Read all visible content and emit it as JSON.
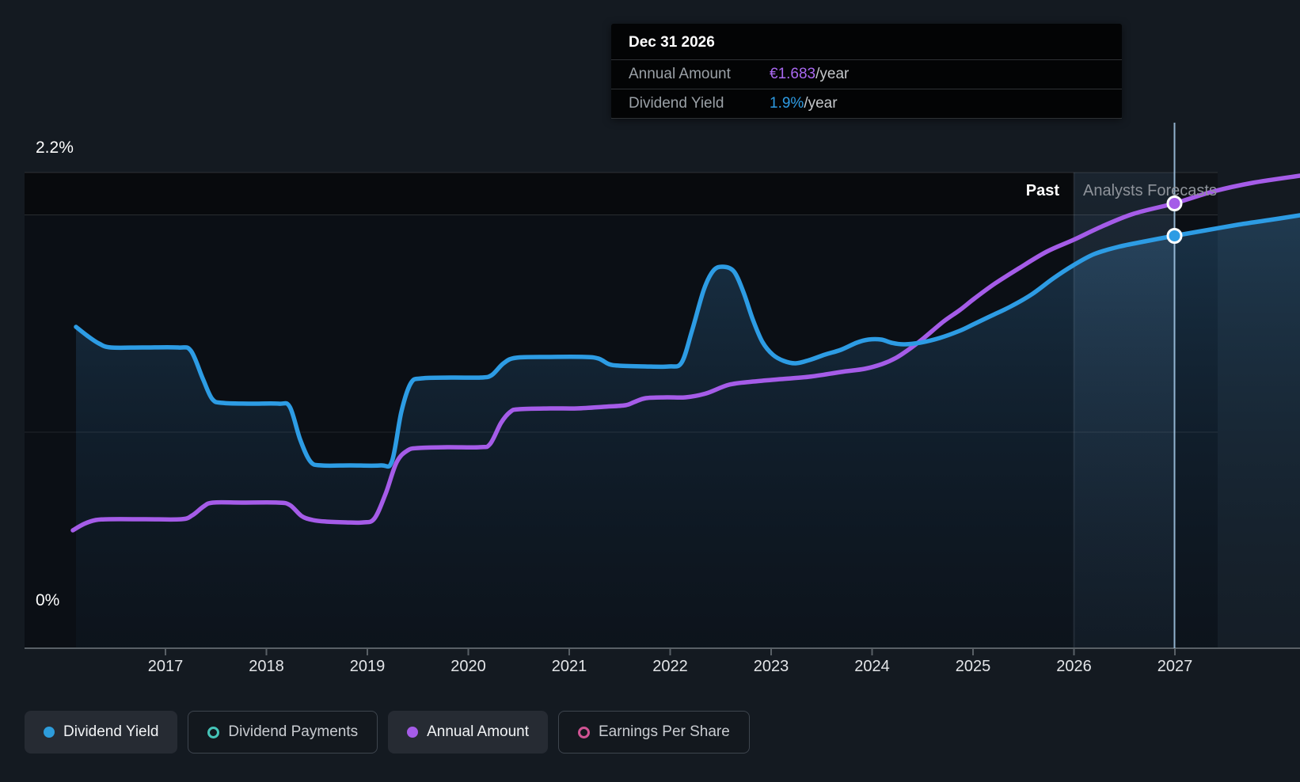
{
  "tooltip": {
    "date": "Dec 31 2026",
    "rows": [
      {
        "label": "Annual Amount",
        "value": "€1.683",
        "suffix": "/year",
        "value_color": "#a968ef"
      },
      {
        "label": "Dividend Yield",
        "value": "1.9%",
        "suffix": "/year",
        "value_color": "#2e9be3"
      }
    ]
  },
  "axes": {
    "y_top": "2.2%",
    "y_bottom": "0%",
    "years": [
      "2017",
      "2018",
      "2019",
      "2020",
      "2021",
      "2022",
      "2023",
      "2024",
      "2025",
      "2026",
      "2027"
    ]
  },
  "bands": {
    "past": "Past",
    "forecast": "Analysts Forecasts"
  },
  "legend": [
    {
      "label": "Dividend Yield",
      "color": "#2d9cdb",
      "marker": "filled",
      "active": true
    },
    {
      "label": "Dividend Payments",
      "color": "#45c4b8",
      "marker": "ring",
      "active": false
    },
    {
      "label": "Annual Amount",
      "color": "#a55ce8",
      "marker": "filled",
      "active": true
    },
    {
      "label": "Earnings Per Share",
      "color": "#cf5393",
      "marker": "ring",
      "active": false
    }
  ],
  "chart_data": {
    "type": "line",
    "title": "Dividend yield and annual dividend amount, past and analysts forecasts",
    "x_range": [
      2016.1,
      2028.2
    ],
    "ylim_percent": [
      0,
      2.2
    ],
    "y_gridlines_percent": [
      2.2,
      1.0,
      0
    ],
    "grid": true,
    "legend_position": "bottom",
    "past_forecast_divider_x": 2026.0,
    "series": [
      {
        "name": "Dividend Yield",
        "unit": "%",
        "color": "#2d9ce4",
        "style": "line+area",
        "points": [
          [
            2016.1,
            1.49
          ],
          [
            2016.5,
            1.39
          ],
          [
            2017,
            1.39
          ],
          [
            2017.5,
            1.13
          ],
          [
            2018,
            1.13
          ],
          [
            2018.6,
            0.85
          ],
          [
            2019.1,
            0.85
          ],
          [
            2019.5,
            1.25
          ],
          [
            2020,
            1.25
          ],
          [
            2020.5,
            1.34
          ],
          [
            2021,
            1.35
          ],
          [
            2021.6,
            1.3
          ],
          [
            2022,
            1.3
          ],
          [
            2022.5,
            1.76
          ],
          [
            2023,
            1.33
          ],
          [
            2023.5,
            1.36
          ],
          [
            2024,
            1.42
          ],
          [
            2024.3,
            1.41
          ],
          [
            2025,
            1.5
          ],
          [
            2026,
            1.77
          ],
          [
            2026.98,
            1.9
          ],
          [
            2028.2,
            2.0
          ]
        ]
      },
      {
        "name": "Annual Amount",
        "unit": "EUR/year",
        "color": "#a55ce8",
        "style": "line",
        "points": [
          [
            2016.1,
            0.45
          ],
          [
            2016.5,
            0.49
          ],
          [
            2017,
            0.49
          ],
          [
            2017.5,
            0.55
          ],
          [
            2018,
            0.55
          ],
          [
            2018.6,
            0.48
          ],
          [
            2019,
            0.48
          ],
          [
            2019.6,
            0.76
          ],
          [
            2020,
            0.76
          ],
          [
            2020.5,
            0.9
          ],
          [
            2021,
            0.91
          ],
          [
            2021.8,
            0.95
          ],
          [
            2022.2,
            0.95
          ],
          [
            2023,
            1.01
          ],
          [
            2024,
            1.05
          ],
          [
            2025,
            1.32
          ],
          [
            2026,
            1.54
          ],
          [
            2026.98,
            1.683
          ],
          [
            2028.2,
            1.79
          ]
        ]
      }
    ],
    "highlighted_point": {
      "date": "Dec 31 2026",
      "annual_amount": "€1.683/year",
      "dividend_yield": "1.9%/year"
    }
  }
}
